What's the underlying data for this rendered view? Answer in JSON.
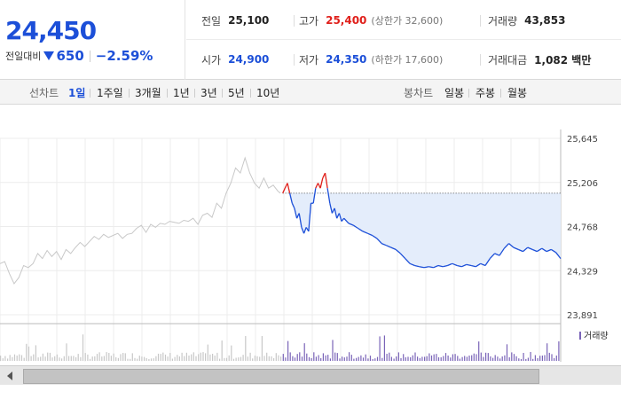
{
  "summary": {
    "price": "24,450",
    "change_label": "전일대비",
    "change": "650",
    "change_pct": "−2.59%"
  },
  "stats": {
    "prev_close_label": "전일",
    "prev_close": "25,100",
    "high_label": "고가",
    "high": "25,400",
    "upper_limit": "(상한가 32,600)",
    "volume_label": "거래량",
    "volume": "43,853",
    "open_label": "시가",
    "open": "24,900",
    "low_label": "저가",
    "low": "24,350",
    "lower_limit": "(하한가 17,600)",
    "amount_label": "거래대금",
    "amount": "1,082 백만"
  },
  "toolbar": {
    "line_label": "선차트",
    "line_periods": [
      "1일",
      "1주일",
      "3개월",
      "1년",
      "3년",
      "5년",
      "10년"
    ],
    "active": "1일",
    "candle_label": "봉차트",
    "candle_periods": [
      "일봉",
      "주봉",
      "월봉"
    ]
  },
  "colors": {
    "up": "#e0201b",
    "down": "#1c4fd8",
    "fill": "#e4edfb",
    "prev_day": "#c8c8c8",
    "volume": "#7a64b8"
  },
  "chart_data": {
    "type": "line",
    "y_ticks": [
      "25,645",
      "25,206",
      "24,768",
      "24,329",
      "23,891"
    ],
    "ylim": [
      23891,
      25645
    ],
    "baseline": 25100,
    "volume_legend": "거래량",
    "prev_day": [
      [
        0,
        24400
      ],
      [
        2,
        24420
      ],
      [
        4,
        24300
      ],
      [
        6,
        24200
      ],
      [
        8,
        24260
      ],
      [
        10,
        24380
      ],
      [
        12,
        24360
      ],
      [
        14,
        24400
      ],
      [
        16,
        24500
      ],
      [
        18,
        24450
      ],
      [
        20,
        24530
      ],
      [
        22,
        24470
      ],
      [
        24,
        24520
      ],
      [
        26,
        24440
      ],
      [
        28,
        24540
      ],
      [
        30,
        24500
      ],
      [
        32,
        24560
      ],
      [
        34,
        24610
      ],
      [
        36,
        24570
      ],
      [
        38,
        24620
      ],
      [
        40,
        24670
      ],
      [
        42,
        24640
      ],
      [
        44,
        24690
      ],
      [
        46,
        24660
      ],
      [
        48,
        24680
      ],
      [
        50,
        24700
      ],
      [
        52,
        24650
      ],
      [
        54,
        24690
      ],
      [
        56,
        24700
      ],
      [
        58,
        24750
      ],
      [
        60,
        24780
      ],
      [
        62,
        24710
      ],
      [
        64,
        24790
      ],
      [
        66,
        24760
      ],
      [
        68,
        24800
      ],
      [
        70,
        24790
      ],
      [
        72,
        24820
      ],
      [
        74,
        24810
      ],
      [
        76,
        24800
      ],
      [
        78,
        24830
      ],
      [
        80,
        24820
      ],
      [
        82,
        24850
      ],
      [
        84,
        24790
      ],
      [
        86,
        24880
      ],
      [
        88,
        24900
      ],
      [
        90,
        24860
      ],
      [
        92,
        25000
      ],
      [
        94,
        24950
      ],
      [
        96,
        25100
      ],
      [
        98,
        25200
      ],
      [
        100,
        25350
      ],
      [
        102,
        25300
      ],
      [
        104,
        25450
      ],
      [
        106,
        25300
      ],
      [
        108,
        25200
      ],
      [
        110,
        25150
      ],
      [
        112,
        25250
      ],
      [
        114,
        25150
      ],
      [
        116,
        25180
      ],
      [
        118,
        25120
      ],
      [
        119,
        25100
      ]
    ],
    "today": [
      [
        120,
        25100
      ],
      [
        121,
        25150
      ],
      [
        122,
        25200
      ],
      [
        123,
        25100
      ],
      [
        124,
        25000
      ],
      [
        125,
        24950
      ],
      [
        126,
        24850
      ],
      [
        127,
        24900
      ],
      [
        128,
        24760
      ],
      [
        129,
        24700
      ],
      [
        130,
        24760
      ],
      [
        131,
        24720
      ],
      [
        132,
        25000
      ],
      [
        133,
        25000
      ],
      [
        134,
        25150
      ],
      [
        135,
        25200
      ],
      [
        136,
        25150
      ],
      [
        137,
        25250
      ],
      [
        138,
        25300
      ],
      [
        139,
        25150
      ],
      [
        140,
        25000
      ],
      [
        141,
        24900
      ],
      [
        142,
        24950
      ],
      [
        143,
        24850
      ],
      [
        144,
        24900
      ],
      [
        145,
        24820
      ],
      [
        146,
        24850
      ],
      [
        148,
        24800
      ],
      [
        150,
        24780
      ],
      [
        152,
        24750
      ],
      [
        154,
        24720
      ],
      [
        156,
        24700
      ],
      [
        158,
        24680
      ],
      [
        160,
        24650
      ],
      [
        162,
        24600
      ],
      [
        164,
        24580
      ],
      [
        166,
        24560
      ],
      [
        168,
        24540
      ],
      [
        170,
        24500
      ],
      [
        172,
        24450
      ],
      [
        174,
        24400
      ],
      [
        176,
        24380
      ],
      [
        178,
        24370
      ],
      [
        180,
        24360
      ],
      [
        182,
        24370
      ],
      [
        184,
        24360
      ],
      [
        186,
        24380
      ],
      [
        188,
        24370
      ],
      [
        190,
        24380
      ],
      [
        192,
        24400
      ],
      [
        194,
        24380
      ],
      [
        196,
        24370
      ],
      [
        198,
        24390
      ],
      [
        200,
        24380
      ],
      [
        202,
        24370
      ],
      [
        204,
        24400
      ],
      [
        206,
        24380
      ],
      [
        208,
        24450
      ],
      [
        210,
        24500
      ],
      [
        212,
        24480
      ],
      [
        214,
        24550
      ],
      [
        216,
        24600
      ],
      [
        218,
        24560
      ],
      [
        220,
        24540
      ],
      [
        222,
        24520
      ],
      [
        224,
        24560
      ],
      [
        226,
        24540
      ],
      [
        228,
        24520
      ],
      [
        230,
        24550
      ],
      [
        232,
        24520
      ],
      [
        234,
        24540
      ],
      [
        236,
        24510
      ],
      [
        238,
        24450
      ]
    ]
  }
}
